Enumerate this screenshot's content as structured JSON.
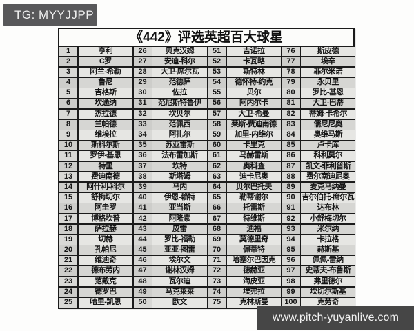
{
  "badge_tg": {
    "label": "TG: MYYJJPP"
  },
  "title": "《442》评选英超百大球星",
  "footer": {
    "url": "www.pitch-yuyanlive.com"
  },
  "colors": {
    "badge_bg": "#58585a",
    "footer_bg": "#464646",
    "grid_border": "#1b1b1b",
    "row_light": "#e6e6e3",
    "row_dark": "#d6d6d3"
  },
  "table": {
    "columns": 4,
    "rows_per_column": 25,
    "players": [
      {
        "rank": "1",
        "name": "亨利"
      },
      {
        "rank": "2",
        "name": "C罗"
      },
      {
        "rank": "3",
        "name": "阿兰-希勒"
      },
      {
        "rank": "4",
        "name": "鲁尼"
      },
      {
        "rank": "5",
        "name": "吉格斯"
      },
      {
        "rank": "6",
        "name": "坎通纳"
      },
      {
        "rank": "7",
        "name": "杰拉德"
      },
      {
        "rank": "8",
        "name": "兰帕德"
      },
      {
        "rank": "9",
        "name": "维埃拉"
      },
      {
        "rank": "10",
        "name": "斯科尔斯"
      },
      {
        "rank": "11",
        "name": "罗伊-基恩"
      },
      {
        "rank": "12",
        "name": "特里"
      },
      {
        "rank": "13",
        "name": "费迪南德"
      },
      {
        "rank": "14",
        "name": "阿什利-科尔"
      },
      {
        "rank": "15",
        "name": "舒梅切尔"
      },
      {
        "rank": "16",
        "name": "阿圭罗"
      },
      {
        "rank": "17",
        "name": "博格坎普"
      },
      {
        "rank": "18",
        "name": "萨拉赫"
      },
      {
        "rank": "19",
        "name": "切赫"
      },
      {
        "rank": "20",
        "name": "孔帕尼"
      },
      {
        "rank": "21",
        "name": "维迪奇"
      },
      {
        "rank": "22",
        "name": "德布劳内"
      },
      {
        "rank": "23",
        "name": "范戴克"
      },
      {
        "rank": "24",
        "name": "德罗巴"
      },
      {
        "rank": "25",
        "name": "哈里-凯恩"
      },
      {
        "rank": "26",
        "name": "贝克汉姆"
      },
      {
        "rank": "27",
        "name": "安迪-科尔"
      },
      {
        "rank": "28",
        "name": "大卫-席尔瓦"
      },
      {
        "rank": "29",
        "name": "范德萨"
      },
      {
        "rank": "30",
        "name": "佐拉"
      },
      {
        "rank": "31",
        "name": "范尼斯特鲁伊"
      },
      {
        "rank": "32",
        "name": "坎贝尔"
      },
      {
        "rank": "33",
        "name": "范佩西"
      },
      {
        "rank": "34",
        "name": "阿扎尔"
      },
      {
        "rank": "35",
        "name": "苏亚雷斯"
      },
      {
        "rank": "36",
        "name": "法布雷加斯"
      },
      {
        "rank": "37",
        "name": "坎特"
      },
      {
        "rank": "38",
        "name": "斯塔姆"
      },
      {
        "rank": "39",
        "name": "马内"
      },
      {
        "rank": "40",
        "name": "伊恩-赖特"
      },
      {
        "rank": "41",
        "name": "亚当斯"
      },
      {
        "rank": "42",
        "name": "阿隆索"
      },
      {
        "rank": "43",
        "name": "皮雷"
      },
      {
        "rank": "44",
        "name": "罗比-福勒"
      },
      {
        "rank": "45",
        "name": "亚亚-图雷"
      },
      {
        "rank": "46",
        "name": "埃尔文"
      },
      {
        "rank": "47",
        "name": "谢林汉姆"
      },
      {
        "rank": "48",
        "name": "瓦尔迪"
      },
      {
        "rank": "49",
        "name": "马克莱莱"
      },
      {
        "rank": "50",
        "name": "欧文"
      },
      {
        "rank": "51",
        "name": "吉诺拉"
      },
      {
        "rank": "52",
        "name": "卡瓦略"
      },
      {
        "rank": "53",
        "name": "斯特林"
      },
      {
        "rank": "54",
        "name": "德怀特-约克"
      },
      {
        "rank": "55",
        "name": "贝尔"
      },
      {
        "rank": "56",
        "name": "阿内尔卡"
      },
      {
        "rank": "57",
        "name": "大卫-希曼"
      },
      {
        "rank": "58",
        "name": "莱斯-费迪南德"
      },
      {
        "rank": "59",
        "name": "加里-内维尔"
      },
      {
        "rank": "60",
        "name": "卡里克"
      },
      {
        "rank": "61",
        "name": "马赫雷斯"
      },
      {
        "rank": "62",
        "name": "奥科查"
      },
      {
        "rank": "63",
        "name": "迪卡尼奥"
      },
      {
        "rank": "64",
        "name": "贝尔巴托夫"
      },
      {
        "rank": "65",
        "name": "勒蒂谢尔"
      },
      {
        "rank": "66",
        "name": "托雷斯"
      },
      {
        "rank": "67",
        "name": "特维斯"
      },
      {
        "rank": "68",
        "name": "迪福"
      },
      {
        "rank": "69",
        "name": "莫德里奇"
      },
      {
        "rank": "70",
        "name": "佩蒂特"
      },
      {
        "rank": "71",
        "name": "哈塞尔巴因克"
      },
      {
        "rank": "72",
        "name": "德赫亚"
      },
      {
        "rank": "73",
        "name": "海皮亚"
      },
      {
        "rank": "74",
        "name": "埃弗拉"
      },
      {
        "rank": "75",
        "name": "克林斯曼"
      },
      {
        "rank": "76",
        "name": "斯皮德"
      },
      {
        "rank": "77",
        "name": "埃辛"
      },
      {
        "rank": "78",
        "name": "菲尔米诺"
      },
      {
        "rank": "79",
        "name": "永贝里"
      },
      {
        "rank": "80",
        "name": "罗比-基恩"
      },
      {
        "rank": "81",
        "name": "大卫-巴蒂"
      },
      {
        "rank": "82",
        "name": "蒂姆-卡希尔"
      },
      {
        "rank": "83",
        "name": "儒尼尼奥"
      },
      {
        "rank": "84",
        "name": "奥维马斯"
      },
      {
        "rank": "85",
        "name": "卢卡库"
      },
      {
        "rank": "86",
        "name": "科利莫尔"
      },
      {
        "rank": "87",
        "name": "凯文-菲利普斯"
      },
      {
        "rank": "88",
        "name": "费尔南迪尼奥"
      },
      {
        "rank": "89",
        "name": "麦克马纳曼"
      },
      {
        "rank": "90",
        "name": "吉尔伯托-席尔瓦"
      },
      {
        "rank": "91",
        "name": "达布林"
      },
      {
        "rank": "92",
        "name": "小舒梅切尔"
      },
      {
        "rank": "93",
        "name": "米尔纳"
      },
      {
        "rank": "94",
        "name": "卡拉格"
      },
      {
        "rank": "95",
        "name": "赫斯基"
      },
      {
        "rank": "96",
        "name": "佩佩-雷纳"
      },
      {
        "rank": "97",
        "name": "史蒂夫-布鲁斯"
      },
      {
        "rank": "98",
        "name": "弗里德尔"
      },
      {
        "rank": "99",
        "name": "坎切尔斯基"
      },
      {
        "rank": "100",
        "name": "克劳奇"
      }
    ]
  }
}
